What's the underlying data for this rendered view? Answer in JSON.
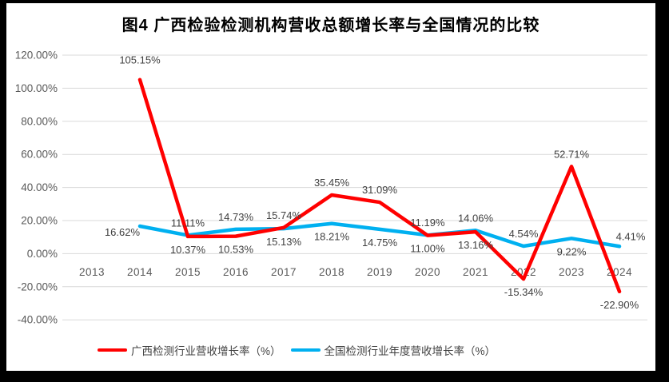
{
  "chart_data": {
    "type": "line",
    "title": "图4 广西检验检测机构营收总额增长率与全国情况的比较",
    "categories": [
      "2013",
      "2014",
      "2015",
      "2016",
      "2017",
      "2018",
      "2019",
      "2020",
      "2021",
      "2022",
      "2023",
      "2024"
    ],
    "ylim": [
      -40,
      120
    ],
    "grid": true,
    "gridline_color": "#d9d9d9",
    "axis_text_color": "#595959",
    "label_text_color": "#404040",
    "legend_position": "bottom",
    "yticks": [
      {
        "label": "120.00%",
        "value": 120
      },
      {
        "label": "100.00%",
        "value": 100
      },
      {
        "label": "80.00%",
        "value": 80
      },
      {
        "label": "60.00%",
        "value": 60
      },
      {
        "label": "40.00%",
        "value": 40
      },
      {
        "label": "20.00%",
        "value": 20
      },
      {
        "label": "0.00%",
        "value": 0
      },
      {
        "label": "-20.00%",
        "value": -20
      },
      {
        "label": "-40.00%",
        "value": -40
      }
    ],
    "series": [
      {
        "name": "广西检测行业营收增长率（%）",
        "color": "#ff0000",
        "values": [
          null,
          105.15,
          10.37,
          10.53,
          15.74,
          35.45,
          31.09,
          11.0,
          13.16,
          -15.34,
          52.71,
          -22.9
        ],
        "labels": [
          "",
          "105.15%",
          "10.37%",
          "10.53%",
          "15.74%",
          "35.45%",
          "31.09%",
          "11.00%",
          "13.16%",
          "-15.34%",
          "52.71%",
          "-22.90%"
        ],
        "label_pos": [
          "",
          "above-far",
          "below",
          "below",
          "above",
          "above",
          "above",
          "below",
          "below",
          "below",
          "above",
          "below"
        ]
      },
      {
        "name": "全国检测行业年度营收增长率（%）",
        "color": "#00b0f0",
        "values": [
          null,
          16.62,
          11.11,
          14.73,
          15.13,
          18.21,
          14.75,
          11.19,
          14.06,
          4.54,
          9.22,
          4.41
        ],
        "labels": [
          "",
          "16.62%",
          "11.11%",
          "14.73%",
          "15.13%",
          "18.21%",
          "14.75%",
          "11.19%",
          "14.06%",
          "4.54%",
          "9.22%",
          "4.41%"
        ],
        "label_pos": [
          "",
          "left",
          "above",
          "above",
          "below",
          "below",
          "below",
          "above",
          "above",
          "above",
          "below",
          "above-right"
        ]
      }
    ]
  }
}
